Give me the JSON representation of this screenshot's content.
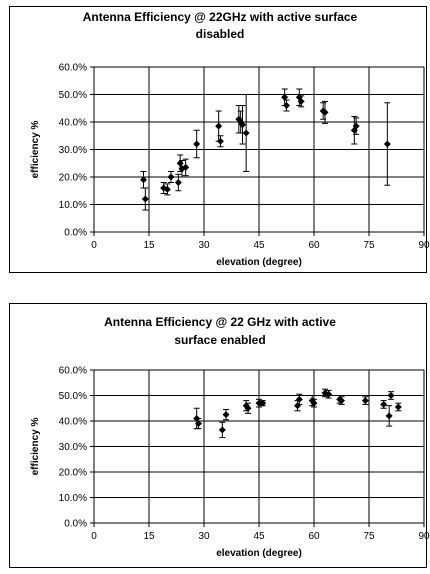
{
  "chart_data": [
    {
      "type": "scatter",
      "title_lines": [
        "Antenna Efficiency @ 22GHz with active surface",
        "disabled"
      ],
      "xlabel": "elevation (degree)",
      "ylabel": "efficiency %",
      "xlim": [
        0,
        90
      ],
      "ylim": [
        0,
        60
      ],
      "x_ticks": [
        "0",
        "15",
        "30",
        "45",
        "60",
        "75",
        "90"
      ],
      "y_ticks": [
        "0.0%",
        "10.0%",
        "20.0%",
        "30.0%",
        "40.0%",
        "50.0%",
        "60.0%"
      ],
      "grid": true,
      "marker_color": "#000000",
      "points": [
        {
          "x": 13.5,
          "y": 19,
          "err": 3
        },
        {
          "x": 14,
          "y": 12,
          "err": 4
        },
        {
          "x": 19,
          "y": 16,
          "err": 2
        },
        {
          "x": 20,
          "y": 15.5,
          "err": 2
        },
        {
          "x": 21,
          "y": 20,
          "err": 2
        },
        {
          "x": 23,
          "y": 18,
          "err": 3
        },
        {
          "x": 23.5,
          "y": 25,
          "err": 3
        },
        {
          "x": 24,
          "y": 23,
          "err": 3
        },
        {
          "x": 25,
          "y": 23.5,
          "err": 3
        },
        {
          "x": 28,
          "y": 32,
          "err": 5
        },
        {
          "x": 34,
          "y": 38.5,
          "err": 5.5
        },
        {
          "x": 34.5,
          "y": 33,
          "err": 2
        },
        {
          "x": 39.5,
          "y": 41,
          "err": 5
        },
        {
          "x": 40,
          "y": 40,
          "err": 4
        },
        {
          "x": 40.5,
          "y": 39,
          "err": 7
        },
        {
          "x": 41.5,
          "y": 36,
          "err": 14
        },
        {
          "x": 52,
          "y": 49,
          "err": 3
        },
        {
          "x": 52.5,
          "y": 46,
          "err": 2
        },
        {
          "x": 56,
          "y": 49,
          "err": 3
        },
        {
          "x": 56.5,
          "y": 47.5,
          "err": 2
        },
        {
          "x": 62.5,
          "y": 44,
          "err": 3
        },
        {
          "x": 63,
          "y": 43.5,
          "err": 4
        },
        {
          "x": 71,
          "y": 37,
          "err": 5
        },
        {
          "x": 71.5,
          "y": 38.5,
          "err": 3
        },
        {
          "x": 80,
          "y": 32,
          "err": 15
        }
      ]
    },
    {
      "type": "scatter",
      "title_lines": [
        "Antenna Efficiency @  22 GHz with active",
        "surface enabled"
      ],
      "xlabel": "elevation (degree)",
      "ylabel": "efficiency %",
      "xlim": [
        0,
        90
      ],
      "ylim": [
        0,
        60
      ],
      "x_ticks": [
        "0",
        "15",
        "30",
        "45",
        "60",
        "75",
        "90"
      ],
      "y_ticks": [
        "0.0%",
        "10.0%",
        "20.0%",
        "30.0%",
        "40.0%",
        "50.0%",
        "60.0%"
      ],
      "grid": true,
      "marker_color": "#000000",
      "points": [
        {
          "x": 28,
          "y": 41,
          "err": 4
        },
        {
          "x": 28.5,
          "y": 39,
          "err": 2
        },
        {
          "x": 35,
          "y": 36.5,
          "err": 3
        },
        {
          "x": 36,
          "y": 42.5,
          "err": 2
        },
        {
          "x": 41.5,
          "y": 46,
          "err": 2
        },
        {
          "x": 42,
          "y": 45,
          "err": 2
        },
        {
          "x": 45,
          "y": 47,
          "err": 1.5
        },
        {
          "x": 46,
          "y": 47,
          "err": 1
        },
        {
          "x": 55.5,
          "y": 46,
          "err": 2
        },
        {
          "x": 56,
          "y": 48.5,
          "err": 2
        },
        {
          "x": 59.5,
          "y": 48,
          "err": 2
        },
        {
          "x": 60,
          "y": 47,
          "err": 1.5
        },
        {
          "x": 63,
          "y": 51,
          "err": 1.5
        },
        {
          "x": 64,
          "y": 50.5,
          "err": 1.5
        },
        {
          "x": 67,
          "y": 48.5,
          "err": 1.5
        },
        {
          "x": 67.5,
          "y": 48,
          "err": 1.5
        },
        {
          "x": 74,
          "y": 48,
          "err": 1.5
        },
        {
          "x": 79,
          "y": 46.5,
          "err": 1.5
        },
        {
          "x": 80.5,
          "y": 42,
          "err": 4
        },
        {
          "x": 81,
          "y": 50,
          "err": 1.5
        },
        {
          "x": 83,
          "y": 45.5,
          "err": 1.5
        }
      ]
    }
  ]
}
